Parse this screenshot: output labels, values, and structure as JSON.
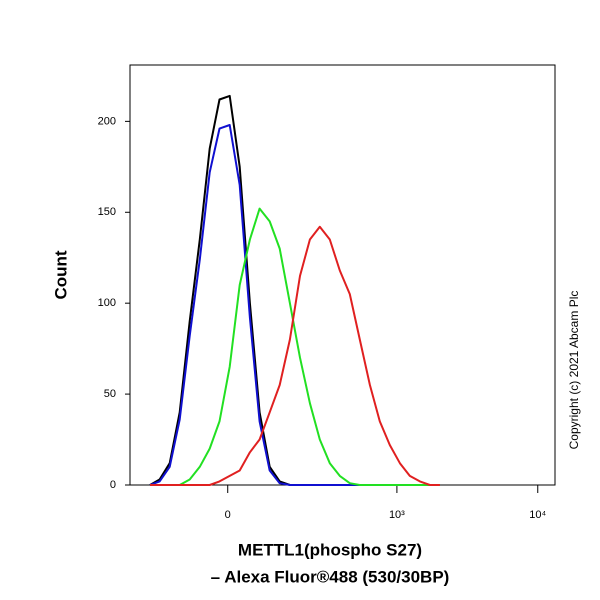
{
  "chart_data": {
    "type": "line",
    "y_label": "Count",
    "x_label": [
      "METTL1(phospho S27)",
      "– Alexa Fluor®488 (530/30BP)"
    ],
    "annotation": "Copyright (c) 2021 Abcam Plc",
    "xscale": "asinh",
    "xscale_cofactor": 127,
    "xlim": [
      -300,
      13250
    ],
    "xticks": [
      0,
      {
        "value": 1000,
        "label": "10³"
      },
      {
        "value": 10000,
        "label": "10⁴"
      }
    ],
    "ylim": [
      0,
      231
    ],
    "yticks": [
      0,
      50,
      100,
      150,
      200
    ],
    "x": [
      -208,
      -172,
      -139,
      -110,
      -84,
      -60,
      -38,
      -17,
      4,
      25,
      47,
      69,
      94,
      121,
      152,
      187,
      226,
      271,
      324,
      385,
      457,
      541,
      640,
      754,
      890,
      1050,
      1237,
      1458,
      1717,
      2023
    ],
    "series": [
      {
        "color": "#000000",
        "values": [
          0,
          3,
          12,
          40,
          90,
          135,
          185,
          212,
          214,
          175,
          100,
          40,
          10,
          2,
          0,
          0,
          0,
          0,
          0,
          0,
          0,
          0,
          0,
          0,
          0,
          0,
          0,
          0,
          0,
          0
        ]
      },
      {
        "color": "#1010d0",
        "values": [
          0,
          2,
          10,
          36,
          82,
          124,
          172,
          196,
          198,
          165,
          92,
          35,
          8,
          1,
          0,
          0,
          0,
          0,
          0,
          0,
          0,
          0,
          0,
          0,
          0,
          0,
          0,
          0,
          0,
          0
        ]
      },
      {
        "color": "#22e022",
        "values": [
          0,
          0,
          0,
          0,
          3,
          10,
          20,
          35,
          65,
          110,
          135,
          152,
          145,
          130,
          100,
          70,
          45,
          25,
          12,
          5,
          1,
          0,
          0,
          0,
          0,
          0,
          0,
          0,
          0,
          0
        ]
      },
      {
        "color": "#e02020",
        "values": [
          0,
          0,
          0,
          0,
          0,
          0,
          0,
          2,
          5,
          8,
          18,
          25,
          40,
          55,
          80,
          115,
          135,
          142,
          135,
          118,
          105,
          80,
          55,
          35,
          22,
          12,
          5,
          2,
          0,
          0
        ]
      }
    ]
  }
}
